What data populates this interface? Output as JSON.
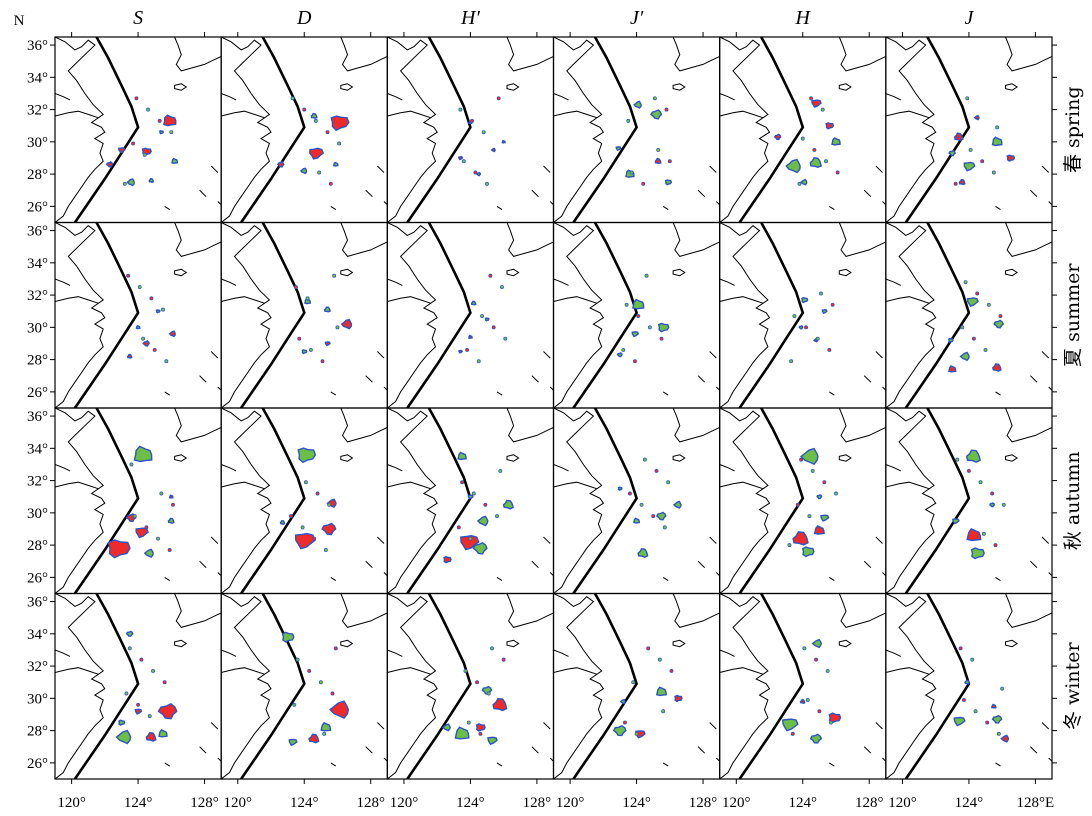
{
  "columns": [
    "S",
    "D",
    "H′",
    "J′",
    "H",
    "J"
  ],
  "rows": [
    "春 spring",
    "夏 summer",
    "秋 autumn",
    "冬 winter"
  ],
  "y_axis": {
    "unit_label": "N",
    "ticks": [
      "36°",
      "34°",
      "32°",
      "30°",
      "28°",
      "26°"
    ]
  },
  "x_axis": {
    "ticks": [
      "120°",
      "124°",
      "128°",
      "120°",
      "124°",
      "128°",
      "120°",
      "124°",
      "128°",
      "120°",
      "124°",
      "128°",
      "120°",
      "124°",
      "128°",
      "120°",
      "124°",
      "128°E"
    ]
  },
  "colors": {
    "positive": "#ee2a2a",
    "negative": "#6cbf45",
    "edge": "#2b54c8"
  },
  "map_extent": {
    "lon": [
      119,
      129
    ],
    "lat": [
      25,
      36.5
    ]
  },
  "patches": [
    [
      [
        {
          "lon": 125.9,
          "lat": 31.3,
          "r": 0.45,
          "c": "r"
        },
        {
          "lon": 124.5,
          "lat": 29.4,
          "r": 0.3,
          "c": "r"
        },
        {
          "lon": 123.0,
          "lat": 29.5,
          "r": 0.2,
          "c": "r"
        },
        {
          "lon": 122.3,
          "lat": 28.6,
          "r": 0.2,
          "c": "r"
        },
        {
          "lon": 123.6,
          "lat": 27.5,
          "r": 0.25,
          "c": "g"
        },
        {
          "lon": 124.8,
          "lat": 27.6,
          "r": 0.15,
          "c": "g"
        },
        {
          "lon": 126.2,
          "lat": 28.8,
          "r": 0.2,
          "c": "g"
        },
        {
          "lon": 125.4,
          "lat": 30.6,
          "r": 0.12,
          "c": "g"
        }
      ],
      [
        {
          "lon": 126.1,
          "lat": 31.2,
          "r": 0.6,
          "c": "r"
        },
        {
          "lon": 124.7,
          "lat": 29.3,
          "r": 0.45,
          "c": "r"
        },
        {
          "lon": 122.6,
          "lat": 28.6,
          "r": 0.2,
          "c": "r"
        },
        {
          "lon": 124.0,
          "lat": 28.2,
          "r": 0.2,
          "c": "g"
        },
        {
          "lon": 124.6,
          "lat": 31.6,
          "r": 0.2,
          "c": "g"
        },
        {
          "lon": 125.9,
          "lat": 28.6,
          "r": 0.15,
          "c": "g"
        }
      ],
      [
        {
          "lon": 123.4,
          "lat": 29.0,
          "r": 0.12,
          "c": "r"
        },
        {
          "lon": 124.5,
          "lat": 28.0,
          "r": 0.12,
          "c": "g"
        },
        {
          "lon": 125.4,
          "lat": 29.5,
          "r": 0.12,
          "c": "r"
        },
        {
          "lon": 124.0,
          "lat": 31.2,
          "r": 0.1,
          "c": "g"
        },
        {
          "lon": 126.0,
          "lat": 30.0,
          "r": 0.1,
          "c": "r"
        }
      ],
      [
        {
          "lon": 125.2,
          "lat": 31.7,
          "r": 0.35,
          "c": "g"
        },
        {
          "lon": 124.1,
          "lat": 32.3,
          "r": 0.25,
          "c": "g"
        },
        {
          "lon": 125.3,
          "lat": 28.8,
          "r": 0.2,
          "c": "r"
        },
        {
          "lon": 123.6,
          "lat": 28.0,
          "r": 0.3,
          "c": "g"
        },
        {
          "lon": 125.9,
          "lat": 27.5,
          "r": 0.2,
          "c": "g"
        },
        {
          "lon": 122.9,
          "lat": 29.6,
          "r": 0.15,
          "c": "g"
        }
      ],
      [
        {
          "lon": 123.5,
          "lat": 28.5,
          "r": 0.5,
          "c": "g"
        },
        {
          "lon": 124.8,
          "lat": 28.7,
          "r": 0.4,
          "c": "g"
        },
        {
          "lon": 126.0,
          "lat": 30.0,
          "r": 0.3,
          "c": "g"
        },
        {
          "lon": 125.6,
          "lat": 31.0,
          "r": 0.25,
          "c": "r"
        },
        {
          "lon": 124.8,
          "lat": 32.4,
          "r": 0.3,
          "c": "r"
        },
        {
          "lon": 122.5,
          "lat": 30.3,
          "r": 0.2,
          "c": "r"
        },
        {
          "lon": 124.1,
          "lat": 27.5,
          "r": 0.2,
          "c": "g"
        }
      ],
      [
        {
          "lon": 123.4,
          "lat": 30.3,
          "r": 0.3,
          "c": "r"
        },
        {
          "lon": 125.7,
          "lat": 30.0,
          "r": 0.35,
          "c": "g"
        },
        {
          "lon": 126.5,
          "lat": 29.0,
          "r": 0.25,
          "c": "r"
        },
        {
          "lon": 124.0,
          "lat": 28.5,
          "r": 0.35,
          "c": "g"
        },
        {
          "lon": 123.0,
          "lat": 29.3,
          "r": 0.2,
          "c": "g"
        },
        {
          "lon": 124.5,
          "lat": 31.5,
          "r": 0.15,
          "c": "r"
        },
        {
          "lon": 123.6,
          "lat": 27.5,
          "r": 0.2,
          "c": "r"
        }
      ]
    ],
    [
      [
        {
          "lon": 124.5,
          "lat": 29.0,
          "r": 0.2,
          "c": "r"
        },
        {
          "lon": 126.1,
          "lat": 29.6,
          "r": 0.2,
          "c": "r"
        },
        {
          "lon": 123.5,
          "lat": 28.2,
          "r": 0.15,
          "c": "r"
        },
        {
          "lon": 124.0,
          "lat": 30.0,
          "r": 0.12,
          "c": "g"
        },
        {
          "lon": 125.2,
          "lat": 31.0,
          "r": 0.12,
          "c": "g"
        }
      ],
      [
        {
          "lon": 126.6,
          "lat": 30.2,
          "r": 0.35,
          "c": "r"
        },
        {
          "lon": 125.4,
          "lat": 31.1,
          "r": 0.2,
          "c": "g"
        },
        {
          "lon": 124.2,
          "lat": 31.6,
          "r": 0.2,
          "c": "g"
        },
        {
          "lon": 124.0,
          "lat": 28.5,
          "r": 0.15,
          "c": "g"
        },
        {
          "lon": 125.4,
          "lat": 29.0,
          "r": 0.15,
          "c": "r"
        }
      ],
      [
        {
          "lon": 124.2,
          "lat": 31.5,
          "r": 0.15,
          "c": "g"
        },
        {
          "lon": 124.0,
          "lat": 29.4,
          "r": 0.12,
          "c": "r"
        },
        {
          "lon": 125.0,
          "lat": 30.5,
          "r": 0.12,
          "c": "g"
        },
        {
          "lon": 123.4,
          "lat": 28.5,
          "r": 0.1,
          "c": "r"
        }
      ],
      [
        {
          "lon": 124.1,
          "lat": 31.4,
          "r": 0.4,
          "c": "g"
        },
        {
          "lon": 125.6,
          "lat": 30.0,
          "r": 0.35,
          "c": "g"
        },
        {
          "lon": 123.9,
          "lat": 29.6,
          "r": 0.2,
          "c": "g"
        },
        {
          "lon": 123.0,
          "lat": 28.3,
          "r": 0.15,
          "c": "g"
        }
      ],
      [
        {
          "lon": 124.1,
          "lat": 31.7,
          "r": 0.2,
          "c": "g"
        },
        {
          "lon": 125.3,
          "lat": 31.0,
          "r": 0.15,
          "c": "g"
        },
        {
          "lon": 123.9,
          "lat": 30.0,
          "r": 0.12,
          "c": "g"
        },
        {
          "lon": 124.8,
          "lat": 29.2,
          "r": 0.12,
          "c": "r"
        }
      ],
      [
        {
          "lon": 124.2,
          "lat": 31.6,
          "r": 0.35,
          "c": "g"
        },
        {
          "lon": 125.8,
          "lat": 30.2,
          "r": 0.3,
          "c": "g"
        },
        {
          "lon": 123.8,
          "lat": 28.2,
          "r": 0.3,
          "c": "g"
        },
        {
          "lon": 125.7,
          "lat": 27.5,
          "r": 0.3,
          "c": "r"
        },
        {
          "lon": 123.0,
          "lat": 27.4,
          "r": 0.25,
          "c": "r"
        },
        {
          "lon": 122.9,
          "lat": 29.2,
          "r": 0.15,
          "c": "g"
        }
      ]
    ],
    [
      [
        {
          "lon": 124.3,
          "lat": 33.6,
          "r": 0.65,
          "c": "g"
        },
        {
          "lon": 122.8,
          "lat": 27.8,
          "r": 0.75,
          "c": "r"
        },
        {
          "lon": 124.2,
          "lat": 28.8,
          "r": 0.4,
          "c": "r"
        },
        {
          "lon": 123.6,
          "lat": 29.7,
          "r": 0.3,
          "c": "r"
        },
        {
          "lon": 124.7,
          "lat": 27.5,
          "r": 0.3,
          "c": "g"
        },
        {
          "lon": 126.0,
          "lat": 29.5,
          "r": 0.2,
          "c": "g"
        },
        {
          "lon": 126.0,
          "lat": 31.0,
          "r": 0.12,
          "c": "r"
        }
      ],
      [
        {
          "lon": 124.1,
          "lat": 33.6,
          "r": 0.6,
          "c": "g"
        },
        {
          "lon": 124.0,
          "lat": 28.3,
          "r": 0.65,
          "c": "r"
        },
        {
          "lon": 125.5,
          "lat": 29.0,
          "r": 0.45,
          "c": "r"
        },
        {
          "lon": 125.7,
          "lat": 30.6,
          "r": 0.3,
          "c": "r"
        },
        {
          "lon": 122.7,
          "lat": 29.4,
          "r": 0.15,
          "c": "g"
        }
      ],
      [
        {
          "lon": 123.9,
          "lat": 28.2,
          "r": 0.6,
          "c": "r"
        },
        {
          "lon": 124.6,
          "lat": 27.8,
          "r": 0.45,
          "c": "g"
        },
        {
          "lon": 124.8,
          "lat": 29.5,
          "r": 0.35,
          "c": "g"
        },
        {
          "lon": 126.3,
          "lat": 30.5,
          "r": 0.35,
          "c": "g"
        },
        {
          "lon": 123.5,
          "lat": 33.5,
          "r": 0.3,
          "c": "g"
        },
        {
          "lon": 122.6,
          "lat": 27.1,
          "r": 0.25,
          "c": "r"
        },
        {
          "lon": 124.0,
          "lat": 31.0,
          "r": 0.15,
          "c": "g"
        }
      ],
      [
        {
          "lon": 125.5,
          "lat": 29.8,
          "r": 0.3,
          "c": "g"
        },
        {
          "lon": 126.5,
          "lat": 30.5,
          "r": 0.25,
          "c": "g"
        },
        {
          "lon": 124.4,
          "lat": 27.5,
          "r": 0.35,
          "c": "g"
        },
        {
          "lon": 124.0,
          "lat": 29.5,
          "r": 0.2,
          "c": "g"
        },
        {
          "lon": 123.0,
          "lat": 31.5,
          "r": 0.12,
          "c": "g"
        }
      ],
      [
        {
          "lon": 124.5,
          "lat": 33.5,
          "r": 0.6,
          "c": "g"
        },
        {
          "lon": 123.9,
          "lat": 28.4,
          "r": 0.55,
          "c": "r"
        },
        {
          "lon": 125.0,
          "lat": 28.9,
          "r": 0.35,
          "c": "r"
        },
        {
          "lon": 124.3,
          "lat": 27.6,
          "r": 0.4,
          "c": "g"
        },
        {
          "lon": 125.3,
          "lat": 29.7,
          "r": 0.25,
          "c": "g"
        },
        {
          "lon": 125.0,
          "lat": 31.0,
          "r": 0.15,
          "c": "g"
        }
      ],
      [
        {
          "lon": 124.3,
          "lat": 33.5,
          "r": 0.5,
          "c": "g"
        },
        {
          "lon": 124.3,
          "lat": 28.6,
          "r": 0.5,
          "c": "r"
        },
        {
          "lon": 124.5,
          "lat": 27.5,
          "r": 0.45,
          "c": "g"
        },
        {
          "lon": 123.2,
          "lat": 29.5,
          "r": 0.2,
          "c": "g"
        },
        {
          "lon": 125.4,
          "lat": 30.5,
          "r": 0.15,
          "c": "g"
        }
      ]
    ],
    [
      [
        {
          "lon": 125.8,
          "lat": 29.2,
          "r": 0.6,
          "c": "r"
        },
        {
          "lon": 123.2,
          "lat": 27.6,
          "r": 0.5,
          "c": "g"
        },
        {
          "lon": 124.8,
          "lat": 27.6,
          "r": 0.35,
          "c": "r"
        },
        {
          "lon": 125.5,
          "lat": 27.8,
          "r": 0.3,
          "c": "g"
        },
        {
          "lon": 123.0,
          "lat": 28.5,
          "r": 0.2,
          "c": "g"
        },
        {
          "lon": 124.0,
          "lat": 29.2,
          "r": 0.2,
          "c": "r"
        },
        {
          "lon": 123.5,
          "lat": 34.0,
          "r": 0.2,
          "c": "g"
        }
      ],
      [
        {
          "lon": 126.2,
          "lat": 29.3,
          "r": 0.65,
          "c": "r"
        },
        {
          "lon": 124.6,
          "lat": 27.5,
          "r": 0.35,
          "c": "r"
        },
        {
          "lon": 125.3,
          "lat": 28.2,
          "r": 0.35,
          "c": "g"
        },
        {
          "lon": 123.0,
          "lat": 33.8,
          "r": 0.4,
          "c": "g"
        },
        {
          "lon": 123.3,
          "lat": 27.3,
          "r": 0.25,
          "c": "g"
        }
      ],
      [
        {
          "lon": 125.8,
          "lat": 29.6,
          "r": 0.5,
          "c": "r"
        },
        {
          "lon": 123.5,
          "lat": 27.8,
          "r": 0.5,
          "c": "g"
        },
        {
          "lon": 124.6,
          "lat": 28.2,
          "r": 0.3,
          "c": "r"
        },
        {
          "lon": 125.3,
          "lat": 27.4,
          "r": 0.3,
          "c": "g"
        },
        {
          "lon": 125.0,
          "lat": 30.5,
          "r": 0.3,
          "c": "g"
        },
        {
          "lon": 122.6,
          "lat": 28.2,
          "r": 0.25,
          "c": "g"
        }
      ],
      [
        {
          "lon": 125.5,
          "lat": 30.4,
          "r": 0.35,
          "c": "g"
        },
        {
          "lon": 126.5,
          "lat": 30.0,
          "r": 0.25,
          "c": "r"
        },
        {
          "lon": 124.2,
          "lat": 27.8,
          "r": 0.3,
          "c": "r"
        },
        {
          "lon": 123.0,
          "lat": 28.0,
          "r": 0.4,
          "c": "g"
        },
        {
          "lon": 123.2,
          "lat": 29.8,
          "r": 0.15,
          "c": "g"
        }
      ],
      [
        {
          "lon": 125.9,
          "lat": 28.8,
          "r": 0.4,
          "c": "r"
        },
        {
          "lon": 123.2,
          "lat": 28.4,
          "r": 0.5,
          "c": "g"
        },
        {
          "lon": 124.8,
          "lat": 27.5,
          "r": 0.35,
          "c": "g"
        },
        {
          "lon": 124.9,
          "lat": 33.4,
          "r": 0.3,
          "c": "g"
        },
        {
          "lon": 124.0,
          "lat": 29.8,
          "r": 0.15,
          "c": "r"
        }
      ],
      [
        {
          "lon": 123.4,
          "lat": 28.6,
          "r": 0.35,
          "c": "g"
        },
        {
          "lon": 125.7,
          "lat": 28.7,
          "r": 0.3,
          "c": "g"
        },
        {
          "lon": 126.2,
          "lat": 27.5,
          "r": 0.25,
          "c": "r"
        },
        {
          "lon": 123.9,
          "lat": 31.0,
          "r": 0.15,
          "c": "g"
        },
        {
          "lon": 125.5,
          "lat": 29.5,
          "r": 0.15,
          "c": "r"
        }
      ]
    ]
  ]
}
